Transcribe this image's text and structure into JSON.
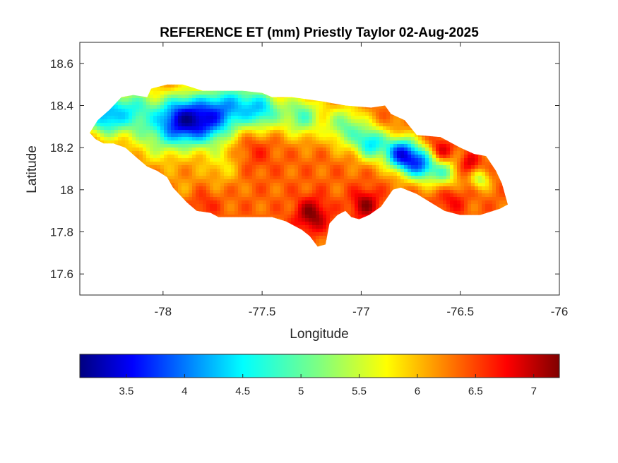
{
  "chart_data": {
    "type": "heatmap",
    "title": "REFERENCE ET (mm) Priestly Taylor 02-Aug-2025",
    "xlabel": "Longitude",
    "ylabel": "Latitude",
    "xlim": [
      -78.42,
      -76.0
    ],
    "ylim": [
      17.5,
      18.7
    ],
    "x_ticks": [
      -78,
      -77.5,
      -77,
      -76.5,
      -76
    ],
    "x_tick_labels": [
      "-78",
      "-77.5",
      "-77",
      "-76.5",
      "-76"
    ],
    "y_ticks": [
      17.6,
      17.8,
      18.0,
      18.2,
      18.4,
      18.6
    ],
    "y_tick_labels": [
      "17.6",
      "17.8",
      "18",
      "18.2",
      "18.4",
      "18.6"
    ],
    "colormap": "jet",
    "colorbar": {
      "location": "south",
      "range": [
        3.1,
        7.22
      ],
      "ticks": [
        3.5,
        4,
        4.5,
        5,
        5.5,
        6,
        6.5,
        7
      ],
      "tick_labels": [
        "3.5",
        "4",
        "4.5",
        "5",
        "5.5",
        "6",
        "6.5",
        "7"
      ]
    },
    "island_outline": [
      [
        -78.37,
        18.27
      ],
      [
        -78.33,
        18.33
      ],
      [
        -78.27,
        18.38
      ],
      [
        -78.21,
        18.44
      ],
      [
        -78.15,
        18.45
      ],
      [
        -78.08,
        18.44
      ],
      [
        -78.06,
        18.48
      ],
      [
        -77.98,
        18.5
      ],
      [
        -77.9,
        18.5
      ],
      [
        -77.8,
        18.47
      ],
      [
        -77.72,
        18.47
      ],
      [
        -77.6,
        18.47
      ],
      [
        -77.5,
        18.46
      ],
      [
        -77.45,
        18.44
      ],
      [
        -77.35,
        18.44
      ],
      [
        -77.2,
        18.42
      ],
      [
        -77.08,
        18.4
      ],
      [
        -76.95,
        18.39
      ],
      [
        -76.88,
        18.4
      ],
      [
        -76.85,
        18.36
      ],
      [
        -76.78,
        18.33
      ],
      [
        -76.72,
        18.26
      ],
      [
        -76.6,
        18.25
      ],
      [
        -76.5,
        18.2
      ],
      [
        -76.43,
        18.17
      ],
      [
        -76.37,
        18.16
      ],
      [
        -76.32,
        18.09
      ],
      [
        -76.29,
        18.03
      ],
      [
        -76.26,
        17.93
      ],
      [
        -76.3,
        17.91
      ],
      [
        -76.4,
        17.88
      ],
      [
        -76.5,
        17.88
      ],
      [
        -76.58,
        17.9
      ],
      [
        -76.65,
        17.94
      ],
      [
        -76.72,
        17.98
      ],
      [
        -76.8,
        18.01
      ],
      [
        -76.84,
        18.0
      ],
      [
        -76.87,
        17.96
      ],
      [
        -76.9,
        17.92
      ],
      [
        -76.96,
        17.88
      ],
      [
        -77.01,
        17.86
      ],
      [
        -77.05,
        17.87
      ],
      [
        -77.08,
        17.9
      ],
      [
        -77.12,
        17.88
      ],
      [
        -77.16,
        17.84
      ],
      [
        -77.18,
        17.74
      ],
      [
        -77.22,
        17.73
      ],
      [
        -77.26,
        17.78
      ],
      [
        -77.3,
        17.81
      ],
      [
        -77.38,
        17.85
      ],
      [
        -77.45,
        17.87
      ],
      [
        -77.55,
        17.87
      ],
      [
        -77.65,
        17.87
      ],
      [
        -77.72,
        17.87
      ],
      [
        -77.76,
        17.89
      ],
      [
        -77.83,
        17.9
      ],
      [
        -77.88,
        17.94
      ],
      [
        -77.95,
        18.01
      ],
      [
        -77.98,
        18.06
      ],
      [
        -78.03,
        18.09
      ],
      [
        -78.08,
        18.11
      ],
      [
        -78.13,
        18.15
      ],
      [
        -78.19,
        18.2
      ],
      [
        -78.25,
        18.22
      ],
      [
        -78.3,
        18.22
      ],
      [
        -78.34,
        18.24
      ]
    ],
    "value_field": {
      "base": 6.3,
      "anomalies": [
        {
          "lon": -78.3,
          "lat": 18.35,
          "value": -1.7,
          "radius": 0.1
        },
        {
          "lon": -78.15,
          "lat": 18.38,
          "value": -1.3,
          "radius": 0.12
        },
        {
          "lon": -77.92,
          "lat": 18.33,
          "value": -2.3,
          "radius": 0.12
        },
        {
          "lon": -77.78,
          "lat": 18.33,
          "value": -1.9,
          "radius": 0.12
        },
        {
          "lon": -77.65,
          "lat": 18.4,
          "value": -1.4,
          "radius": 0.12
        },
        {
          "lon": -77.5,
          "lat": 18.38,
          "value": -1.5,
          "radius": 0.1
        },
        {
          "lon": -77.3,
          "lat": 18.35,
          "value": -1.3,
          "radius": 0.1
        },
        {
          "lon": -77.08,
          "lat": 18.3,
          "value": -1.2,
          "radius": 0.1
        },
        {
          "lon": -76.95,
          "lat": 18.22,
          "value": -1.6,
          "radius": 0.08
        },
        {
          "lon": -76.8,
          "lat": 18.17,
          "value": -2.4,
          "radius": 0.08
        },
        {
          "lon": -76.7,
          "lat": 18.12,
          "value": -2.0,
          "radius": 0.08
        },
        {
          "lon": -76.58,
          "lat": 18.08,
          "value": -1.1,
          "radius": 0.07
        },
        {
          "lon": -76.4,
          "lat": 18.05,
          "value": -0.9,
          "radius": 0.05
        },
        {
          "lon": -78.05,
          "lat": 18.22,
          "value": -0.6,
          "radius": 0.12
        },
        {
          "lon": -77.7,
          "lat": 18.12,
          "value": -0.5,
          "radius": 0.1
        },
        {
          "lon": -77.9,
          "lat": 18.02,
          "value": -0.2,
          "radius": 0.1
        },
        {
          "lon": -78.22,
          "lat": 18.27,
          "value": 0.0,
          "radius": 0.05
        },
        {
          "lon": -77.25,
          "lat": 17.88,
          "value": 0.9,
          "radius": 0.08
        },
        {
          "lon": -76.98,
          "lat": 17.93,
          "value": 0.8,
          "radius": 0.07
        },
        {
          "lon": -76.6,
          "lat": 18.18,
          "value": 0.7,
          "radius": 0.06
        },
        {
          "lon": -76.45,
          "lat": 18.12,
          "value": 0.6,
          "radius": 0.05
        },
        {
          "lon": -77.55,
          "lat": 18.2,
          "value": 0.3,
          "radius": 0.1
        },
        {
          "lon": -76.55,
          "lat": 17.95,
          "value": 0.4,
          "radius": 0.07
        },
        {
          "lon": -77.8,
          "lat": 17.93,
          "value": 0.3,
          "radius": 0.07
        }
      ]
    }
  }
}
